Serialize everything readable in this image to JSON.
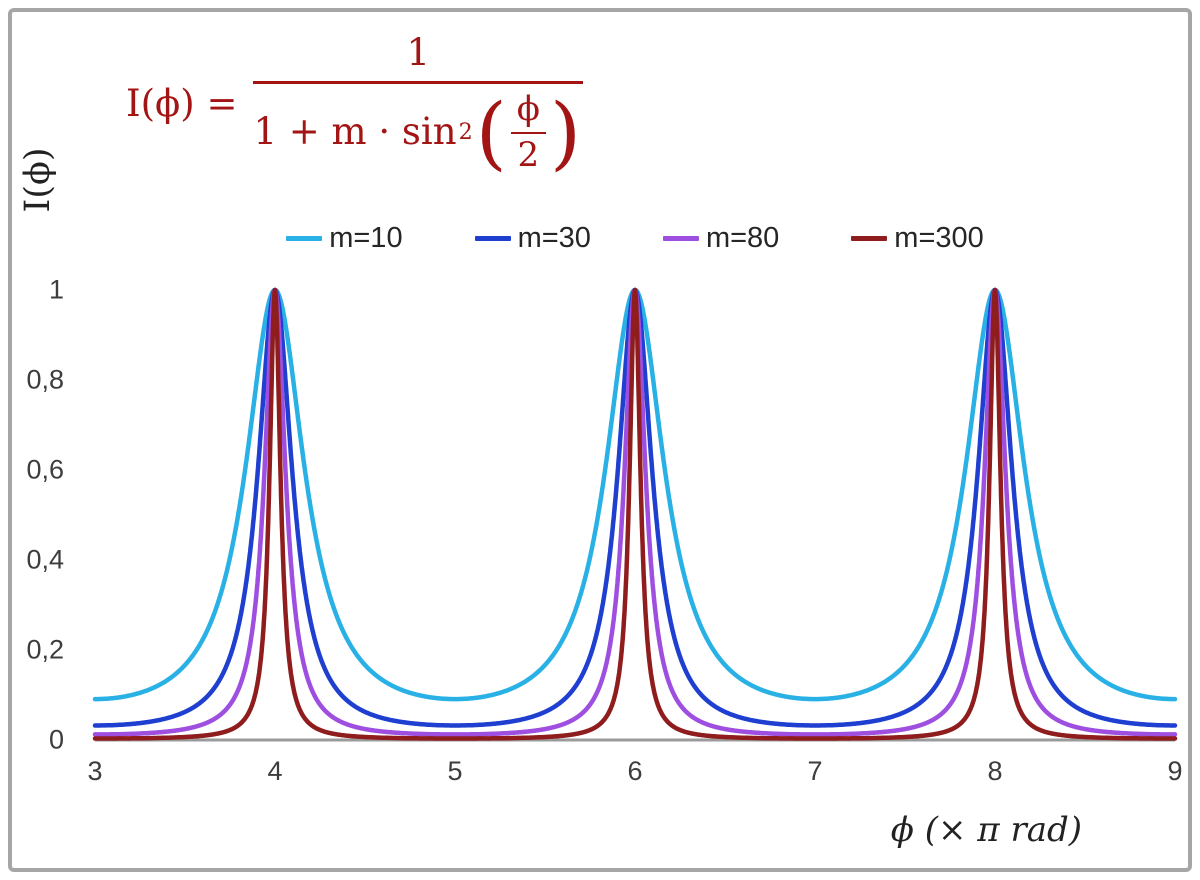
{
  "colors": {
    "background": "#ffffff",
    "frame": "#a6a6a6",
    "axis_line": "#9b9b9b",
    "tick_text": "#3d3d3d",
    "axis_title_text": "#222222",
    "legend_text": "#262626",
    "formula_red": "#a31515"
  },
  "formula": {
    "lhs": "I(ϕ) =",
    "numerator": "1",
    "denom_text": "1 + m · sin",
    "denom_sup": "2",
    "open_paren": "(",
    "inner_num": "ϕ",
    "inner_den": "2",
    "close_paren": ")"
  },
  "chart_data": {
    "type": "line",
    "title": "",
    "formula": "I(ϕ) = 1 / (1 + m·sin²(ϕ/2))",
    "function_of_x": "y = 1 / (1 + m·sin²(π·x/2)), x = ϕ in units of π rad",
    "xlabel": "ϕ  (× π rad)",
    "ylabel": "I(ϕ)",
    "xlim": [
      3,
      9
    ],
    "ylim": [
      0,
      1
    ],
    "x_tick_values": [
      3,
      4,
      5,
      6,
      7,
      8,
      9
    ],
    "x_tick_labels": [
      "3",
      "4",
      "5",
      "6",
      "7",
      "8",
      "9"
    ],
    "y_tick_values": [
      0,
      0.2,
      0.4,
      0.6,
      0.8,
      1
    ],
    "y_tick_labels": [
      "0",
      "0,2",
      "0,4",
      "0,6",
      "0,8",
      "1"
    ],
    "grid": false,
    "legend_position": "top-center",
    "peak_x_values": [
      4,
      6,
      8
    ],
    "peak_y_value": 1,
    "sample_x": [
      3,
      3.5,
      4,
      4.5,
      5,
      5.5,
      6,
      6.5,
      7,
      7.5,
      8,
      8.5,
      9
    ],
    "series": [
      {
        "name": "m=10",
        "m": 10,
        "color": "#29b1e6",
        "sample_y": [
          0.091,
          0.167,
          1,
          0.167,
          0.091,
          0.167,
          1,
          0.167,
          0.091,
          0.167,
          1,
          0.167,
          0.091
        ]
      },
      {
        "name": "m=30",
        "m": 30,
        "color": "#1e3fd0",
        "sample_y": [
          0.032,
          0.063,
          1,
          0.063,
          0.032,
          0.063,
          1,
          0.063,
          0.032,
          0.063,
          1,
          0.063,
          0.032
        ]
      },
      {
        "name": "m=80",
        "m": 80,
        "color": "#9e4fe0",
        "sample_y": [
          0.012,
          0.024,
          1,
          0.024,
          0.012,
          0.024,
          1,
          0.024,
          0.012,
          0.024,
          1,
          0.024,
          0.012
        ]
      },
      {
        "name": "m=300",
        "m": 300,
        "color": "#8f1d1d",
        "sample_y": [
          0.003,
          0.007,
          1,
          0.007,
          0.003,
          0.007,
          1,
          0.007,
          0.003,
          0.007,
          1,
          0.007,
          0.003
        ]
      }
    ]
  }
}
